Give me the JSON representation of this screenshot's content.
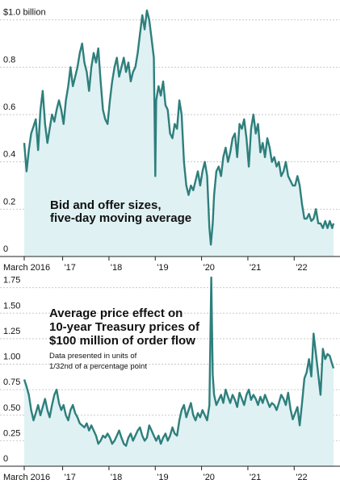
{
  "chart_data": [
    {
      "type": "area",
      "annotation_lines": [
        "Bid and offer sizes,",
        "five-day moving average"
      ],
      "y_tick_labels": [
        "$1.0 billion",
        "0.8",
        "0.6",
        "0.4",
        "0.2",
        "0"
      ],
      "y_ticks": [
        1.0,
        0.8,
        0.6,
        0.4,
        0.2,
        0
      ],
      "ylim": [
        0,
        1.05
      ],
      "x_tick_labels": [
        "March 2016",
        "'17",
        "'18",
        "'19",
        "'20",
        "'21",
        "'22"
      ],
      "x_ticks": [
        2016.17,
        2017.0,
        2018.0,
        2019.0,
        2020.0,
        2021.0,
        2022.0
      ],
      "xlim": [
        2016.17,
        2022.85
      ],
      "line_color": "#2e7f7c",
      "fill_color": "#dff1f3",
      "x": [
        2016.17,
        2016.22,
        2016.27,
        2016.32,
        2016.37,
        2016.42,
        2016.47,
        2016.52,
        2016.57,
        2016.62,
        2016.67,
        2016.72,
        2016.77,
        2016.82,
        2016.87,
        2016.92,
        2016.97,
        2017.02,
        2017.07,
        2017.12,
        2017.17,
        2017.22,
        2017.27,
        2017.32,
        2017.37,
        2017.42,
        2017.47,
        2017.52,
        2017.57,
        2017.62,
        2017.67,
        2017.72,
        2017.77,
        2017.82,
        2017.87,
        2017.92,
        2017.97,
        2018.02,
        2018.07,
        2018.12,
        2018.17,
        2018.22,
        2018.27,
        2018.32,
        2018.37,
        2018.42,
        2018.47,
        2018.52,
        2018.57,
        2018.62,
        2018.67,
        2018.72,
        2018.77,
        2018.82,
        2018.87,
        2018.92,
        2018.97,
        2019.0,
        2019.02,
        2019.07,
        2019.12,
        2019.17,
        2019.22,
        2019.27,
        2019.32,
        2019.37,
        2019.42,
        2019.47,
        2019.52,
        2019.57,
        2019.62,
        2019.67,
        2019.72,
        2019.77,
        2019.82,
        2019.87,
        2019.92,
        2019.97,
        2020.02,
        2020.07,
        2020.12,
        2020.17,
        2020.2,
        2020.24,
        2020.27,
        2020.32,
        2020.37,
        2020.42,
        2020.47,
        2020.52,
        2020.57,
        2020.62,
        2020.67,
        2020.72,
        2020.77,
        2020.82,
        2020.87,
        2020.92,
        2020.97,
        2021.02,
        2021.07,
        2021.12,
        2021.17,
        2021.22,
        2021.27,
        2021.32,
        2021.37,
        2021.42,
        2021.47,
        2021.52,
        2021.57,
        2021.62,
        2021.67,
        2021.72,
        2021.77,
        2021.82,
        2021.87,
        2021.92,
        2021.97,
        2022.02,
        2022.07,
        2022.12,
        2022.17,
        2022.22,
        2022.27,
        2022.32,
        2022.37,
        2022.42,
        2022.47,
        2022.52,
        2022.57,
        2022.62,
        2022.67,
        2022.72,
        2022.77,
        2022.82,
        2022.85
      ],
      "values": [
        0.48,
        0.36,
        0.45,
        0.52,
        0.55,
        0.58,
        0.45,
        0.62,
        0.7,
        0.56,
        0.48,
        0.54,
        0.6,
        0.57,
        0.62,
        0.66,
        0.62,
        0.56,
        0.66,
        0.72,
        0.8,
        0.72,
        0.76,
        0.8,
        0.86,
        0.9,
        0.82,
        0.78,
        0.7,
        0.8,
        0.86,
        0.82,
        0.88,
        0.74,
        0.62,
        0.58,
        0.56,
        0.66,
        0.74,
        0.8,
        0.84,
        0.76,
        0.8,
        0.84,
        0.78,
        0.82,
        0.74,
        0.78,
        0.8,
        0.86,
        0.94,
        1.02,
        0.96,
        1.04,
        1.0,
        0.92,
        0.84,
        0.34,
        0.66,
        0.72,
        0.68,
        0.74,
        0.64,
        0.62,
        0.52,
        0.5,
        0.56,
        0.54,
        0.66,
        0.6,
        0.4,
        0.3,
        0.26,
        0.3,
        0.28,
        0.32,
        0.36,
        0.3,
        0.36,
        0.4,
        0.34,
        0.12,
        0.05,
        0.14,
        0.26,
        0.36,
        0.38,
        0.34,
        0.42,
        0.46,
        0.4,
        0.44,
        0.5,
        0.52,
        0.42,
        0.56,
        0.54,
        0.58,
        0.5,
        0.38,
        0.54,
        0.6,
        0.52,
        0.56,
        0.44,
        0.48,
        0.42,
        0.5,
        0.46,
        0.4,
        0.42,
        0.38,
        0.4,
        0.34,
        0.36,
        0.4,
        0.34,
        0.32,
        0.3,
        0.3,
        0.34,
        0.3,
        0.22,
        0.16,
        0.16,
        0.18,
        0.15,
        0.16,
        0.2,
        0.14,
        0.14,
        0.12,
        0.15,
        0.12,
        0.15,
        0.12,
        0.14
      ]
    },
    {
      "type": "area",
      "annotation_lines": [
        "Average price effect on",
        "10-year Treasury prices of",
        "$100 million of order flow"
      ],
      "note_lines": [
        "Data presented in units of",
        "1/32nd of a percentage point"
      ],
      "y_tick_labels": [
        "1.75",
        "1.50",
        "1.25",
        "1.00",
        "0.75",
        "0.50",
        "0.25",
        "0"
      ],
      "y_ticks": [
        1.75,
        1.5,
        1.25,
        1.0,
        0.75,
        0.5,
        0.25,
        0
      ],
      "ylim": [
        0,
        1.85
      ],
      "x_tick_labels": [
        "March 2016",
        "'17",
        "'18",
        "'19",
        "'20",
        "'21",
        "'22"
      ],
      "x_ticks": [
        2016.17,
        2017.0,
        2018.0,
        2019.0,
        2020.0,
        2021.0,
        2022.0
      ],
      "xlim": [
        2016.17,
        2022.85
      ],
      "line_color": "#2e7f7c",
      "fill_color": "#dff1f3",
      "x": [
        2016.17,
        2016.22,
        2016.27,
        2016.32,
        2016.37,
        2016.42,
        2016.47,
        2016.52,
        2016.57,
        2016.62,
        2016.67,
        2016.72,
        2016.77,
        2016.82,
        2016.87,
        2016.92,
        2016.97,
        2017.02,
        2017.07,
        2017.12,
        2017.17,
        2017.22,
        2017.27,
        2017.32,
        2017.37,
        2017.42,
        2017.47,
        2017.52,
        2017.57,
        2017.62,
        2017.67,
        2017.72,
        2017.77,
        2017.82,
        2017.87,
        2017.92,
        2017.97,
        2018.02,
        2018.07,
        2018.12,
        2018.17,
        2018.22,
        2018.27,
        2018.32,
        2018.37,
        2018.42,
        2018.47,
        2018.52,
        2018.57,
        2018.62,
        2018.67,
        2018.72,
        2018.77,
        2018.82,
        2018.87,
        2018.92,
        2018.97,
        2019.02,
        2019.07,
        2019.12,
        2019.17,
        2019.22,
        2019.27,
        2019.32,
        2019.37,
        2019.42,
        2019.47,
        2019.52,
        2019.57,
        2019.62,
        2019.67,
        2019.72,
        2019.77,
        2019.82,
        2019.87,
        2019.92,
        2019.97,
        2020.02,
        2020.07,
        2020.12,
        2020.17,
        2020.21,
        2020.24,
        2020.27,
        2020.32,
        2020.37,
        2020.42,
        2020.47,
        2020.52,
        2020.57,
        2020.62,
        2020.67,
        2020.72,
        2020.77,
        2020.82,
        2020.87,
        2020.92,
        2020.97,
        2021.02,
        2021.07,
        2021.12,
        2021.17,
        2021.22,
        2021.27,
        2021.32,
        2021.37,
        2021.42,
        2021.47,
        2021.52,
        2021.57,
        2021.62,
        2021.67,
        2021.72,
        2021.77,
        2021.82,
        2021.87,
        2021.92,
        2021.97,
        2022.02,
        2022.07,
        2022.12,
        2022.17,
        2022.22,
        2022.27,
        2022.32,
        2022.37,
        2022.42,
        2022.47,
        2022.52,
        2022.57,
        2022.62,
        2022.67,
        2022.72,
        2022.77,
        2022.82,
        2022.85
      ],
      "values": [
        0.85,
        0.78,
        0.7,
        0.55,
        0.45,
        0.52,
        0.6,
        0.5,
        0.58,
        0.66,
        0.55,
        0.48,
        0.6,
        0.7,
        0.75,
        0.62,
        0.55,
        0.6,
        0.5,
        0.45,
        0.55,
        0.6,
        0.52,
        0.48,
        0.42,
        0.4,
        0.38,
        0.42,
        0.35,
        0.4,
        0.35,
        0.3,
        0.22,
        0.25,
        0.3,
        0.28,
        0.32,
        0.28,
        0.22,
        0.25,
        0.3,
        0.35,
        0.28,
        0.22,
        0.2,
        0.28,
        0.32,
        0.25,
        0.3,
        0.35,
        0.38,
        0.3,
        0.25,
        0.28,
        0.4,
        0.35,
        0.3,
        0.25,
        0.3,
        0.22,
        0.28,
        0.32,
        0.25,
        0.3,
        0.38,
        0.32,
        0.3,
        0.45,
        0.55,
        0.6,
        0.48,
        0.55,
        0.62,
        0.5,
        0.45,
        0.52,
        0.48,
        0.55,
        0.5,
        0.45,
        0.6,
        1.85,
        0.9,
        0.7,
        0.6,
        0.65,
        0.7,
        0.62,
        0.75,
        0.68,
        0.62,
        0.7,
        0.65,
        0.58,
        0.72,
        0.66,
        0.6,
        0.7,
        0.75,
        0.65,
        0.7,
        0.66,
        0.6,
        0.68,
        0.62,
        0.7,
        0.64,
        0.58,
        0.62,
        0.6,
        0.55,
        0.62,
        0.7,
        0.66,
        0.6,
        0.72,
        0.56,
        0.46,
        0.52,
        0.58,
        0.4,
        0.62,
        0.86,
        0.92,
        1.05,
        0.88,
        1.3,
        1.1,
        0.9,
        0.7,
        1.15,
        1.05,
        1.1,
        1.08,
        1.0,
        0.96
      ]
    }
  ]
}
